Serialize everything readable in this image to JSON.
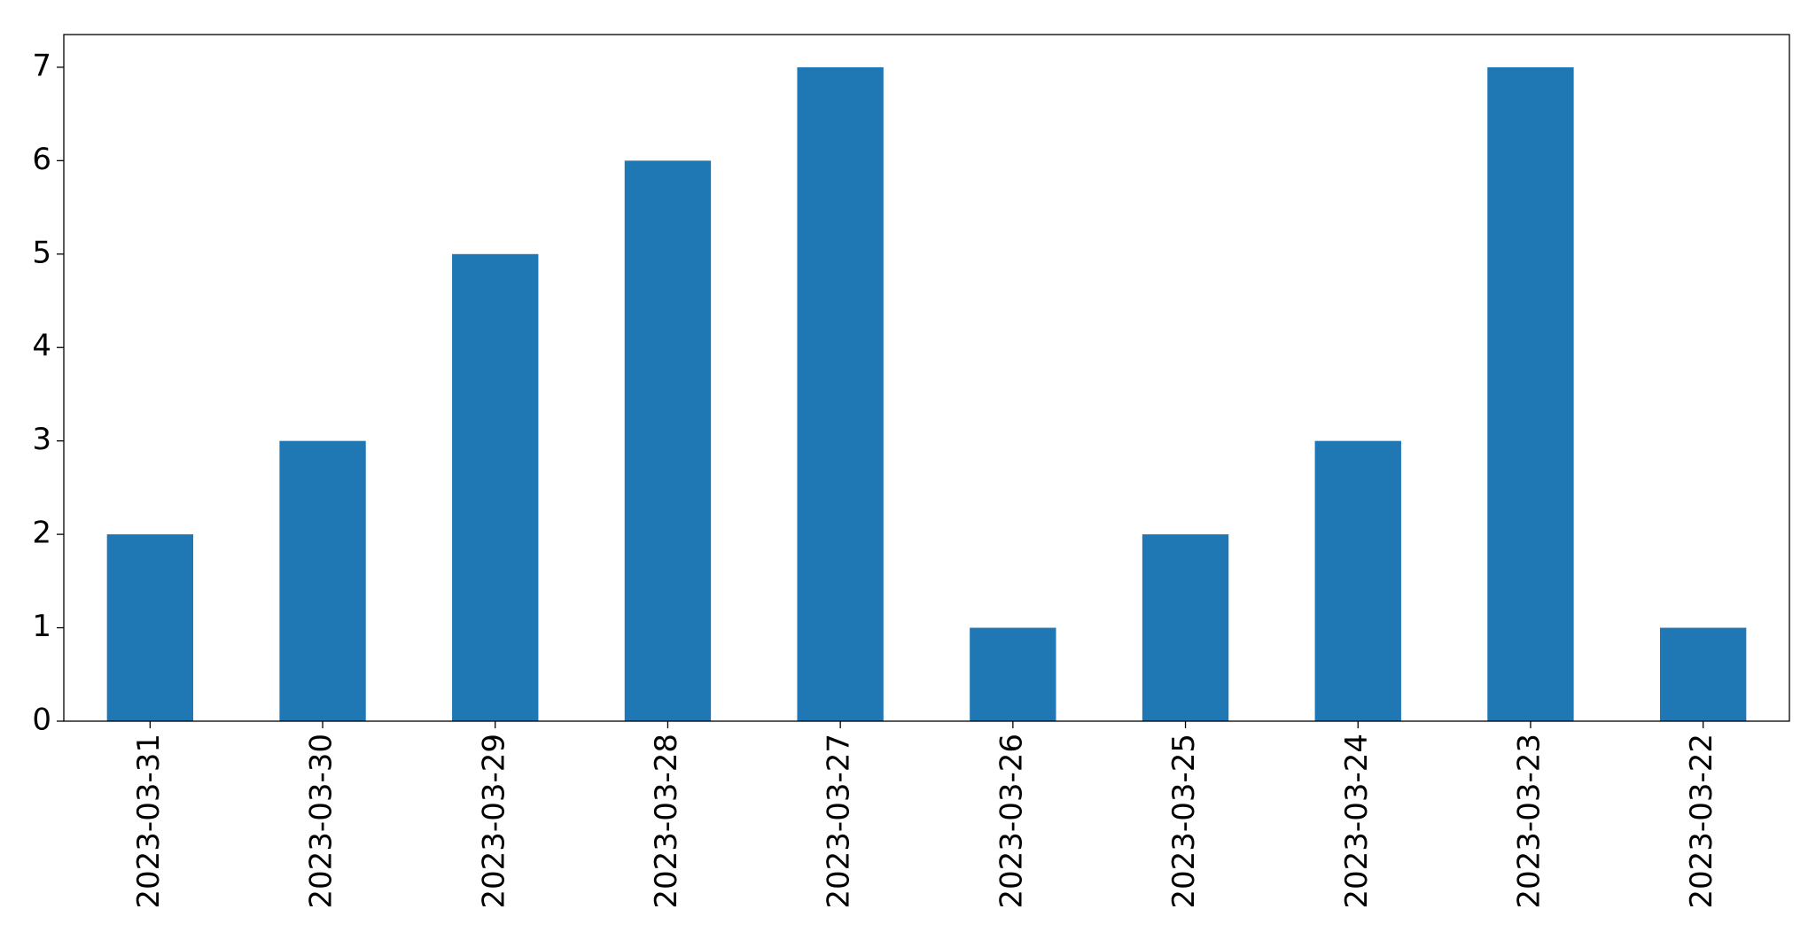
{
  "chart_data": {
    "type": "bar",
    "categories": [
      "2023-03-31",
      "2023-03-30",
      "2023-03-29",
      "2023-03-28",
      "2023-03-27",
      "2023-03-26",
      "2023-03-25",
      "2023-03-24",
      "2023-03-23",
      "2023-03-22"
    ],
    "values": [
      2,
      3,
      5,
      6,
      7,
      1,
      2,
      3,
      7,
      1
    ],
    "color": "#1f77b4",
    "ylim": [
      0,
      7.35
    ],
    "yticks": [
      0,
      1,
      2,
      3,
      4,
      5,
      6,
      7
    ],
    "grid": false
  }
}
